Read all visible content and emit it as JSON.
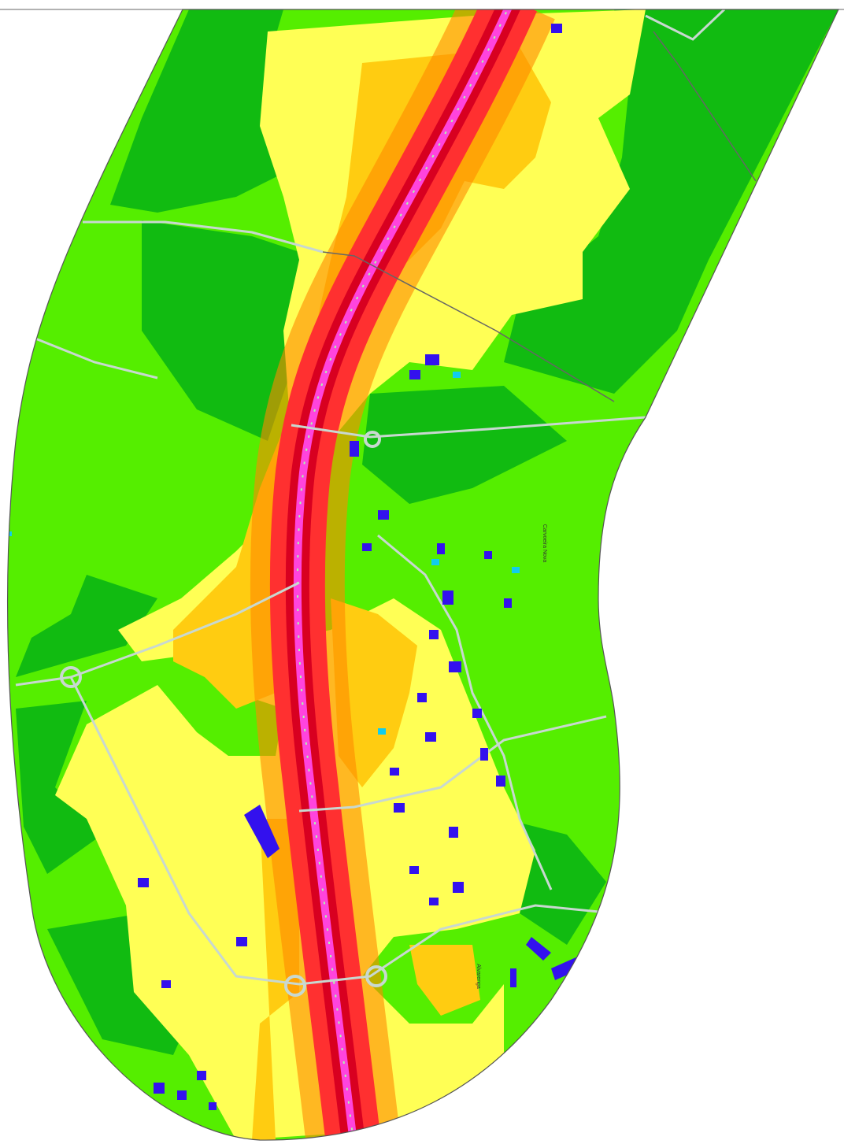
{
  "map": {
    "labels": [
      {
        "text": "Carvoeira Nova"
      },
      {
        "text": "Alvarenga"
      }
    ]
  }
}
